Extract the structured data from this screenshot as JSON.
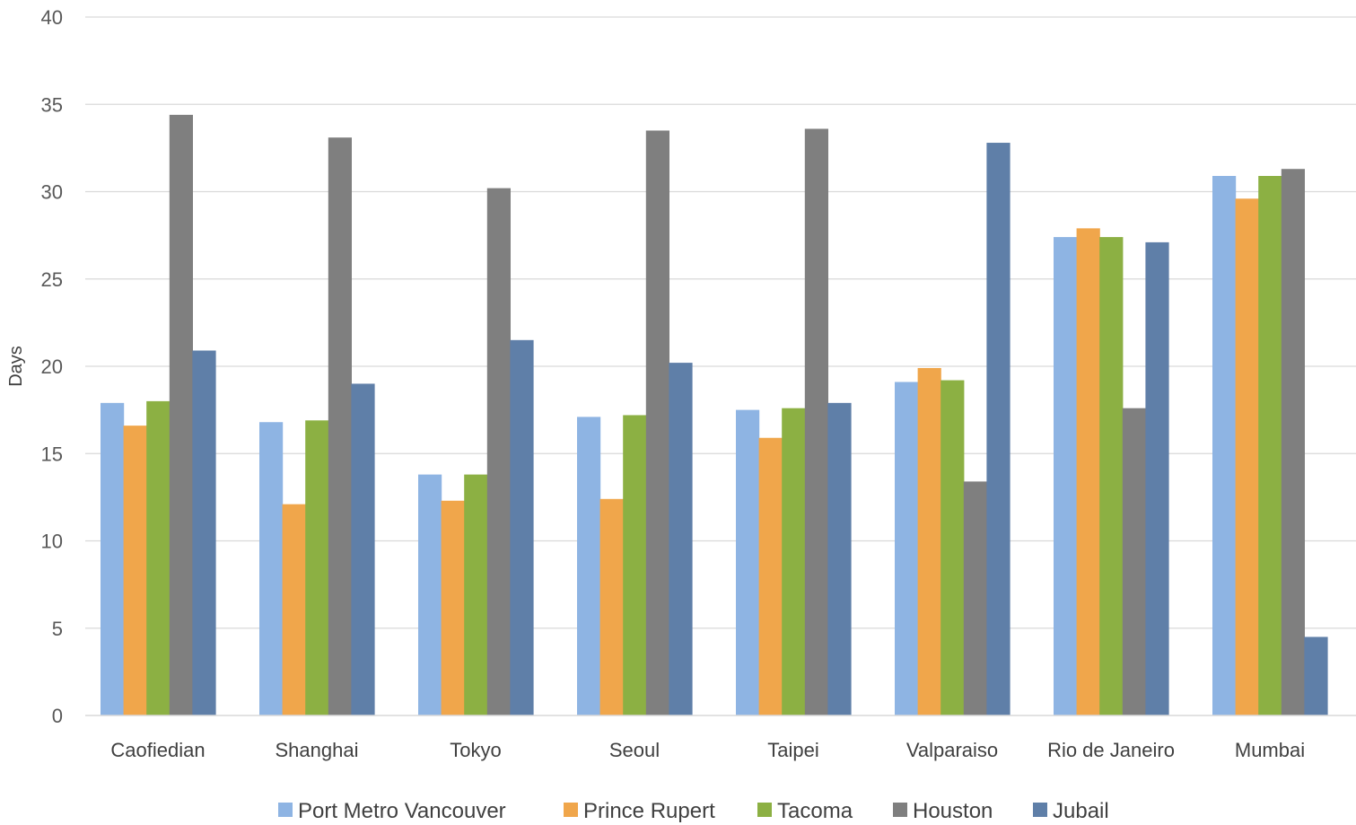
{
  "chart_data": {
    "type": "bar",
    "title": "",
    "xlabel": "",
    "ylabel": "Days",
    "ylim": [
      0,
      40
    ],
    "yticks": [
      0,
      5,
      10,
      15,
      20,
      25,
      30,
      35,
      40
    ],
    "grid": true,
    "legend_position": "bottom",
    "categories": [
      "Caofiedian",
      "Shanghai",
      "Tokyo",
      "Seoul",
      "Taipei",
      "Valparaiso",
      "Rio de Janeiro",
      "Mumbai"
    ],
    "series": [
      {
        "name": "Port Metro Vancouver",
        "color": "#8EB4E3",
        "values": [
          17.9,
          16.8,
          13.8,
          17.1,
          17.5,
          19.1,
          27.4,
          30.9
        ]
      },
      {
        "name": "Prince Rupert",
        "color": "#F0A64B",
        "values": [
          16.6,
          12.1,
          12.3,
          12.4,
          15.9,
          19.9,
          27.9,
          29.6
        ]
      },
      {
        "name": "Tacoma",
        "color": "#8CB043",
        "values": [
          18.0,
          16.9,
          13.8,
          17.2,
          17.6,
          19.2,
          27.4,
          30.9
        ]
      },
      {
        "name": "Houston",
        "color": "#7F7F7F",
        "values": [
          34.4,
          33.1,
          30.2,
          33.5,
          33.6,
          13.4,
          17.6,
          31.3
        ]
      },
      {
        "name": "Jubail",
        "color": "#5F7FA8",
        "values": [
          20.9,
          19.0,
          21.5,
          20.2,
          17.9,
          32.8,
          27.1,
          4.5
        ]
      }
    ]
  }
}
